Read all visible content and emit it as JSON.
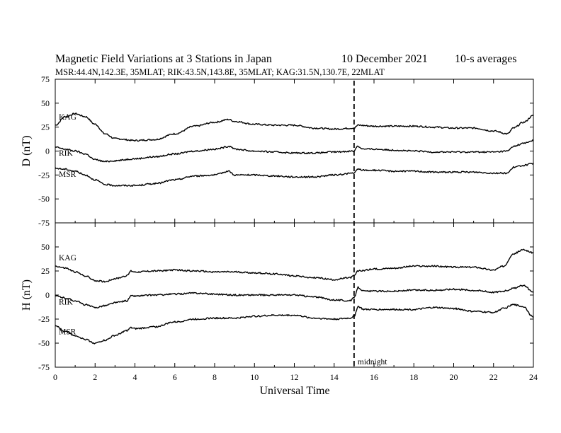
{
  "header": {
    "title": "Magnetic Field Variations at 3 Stations in Japan",
    "date": "10 December 2021",
    "averaging": "10-s averages",
    "stations_line": "MSR:44.4N,142.3E, 35MLAT;  RIK:43.5N,143.8E, 35MLAT;  KAG:31.5N,130.7E, 22MLAT"
  },
  "annotation": {
    "midnight": "midnight",
    "midnight_ut": 15
  },
  "chart_data": [
    {
      "type": "line",
      "panel": "D",
      "ylabel": "D (nT)",
      "xlabel": "",
      "xlim": [
        0,
        24
      ],
      "ylim": [
        -75,
        75
      ],
      "yticks": [
        75,
        50,
        25,
        0,
        -25,
        -50,
        -75
      ],
      "ytick_labels": [
        "75",
        "50",
        "25",
        "0",
        "-25",
        "-50",
        "-75"
      ],
      "grid": false,
      "series": [
        {
          "name": "KAG",
          "x": [
            0,
            0.5,
            1,
            1.5,
            2,
            2.5,
            3,
            4,
            5,
            6,
            7,
            8,
            8.7,
            9,
            10,
            11,
            12,
            13,
            14,
            15,
            15.2,
            16,
            17,
            18,
            19,
            20,
            21,
            22,
            22.7,
            23,
            23.5,
            24
          ],
          "y": [
            27,
            36,
            39,
            36,
            28,
            18,
            13,
            11,
            12,
            18,
            26,
            30,
            33,
            31,
            28,
            27,
            27,
            24,
            23,
            24,
            27,
            26,
            26,
            26,
            25,
            24,
            24,
            21,
            18,
            24,
            30,
            37
          ]
        },
        {
          "name": "RIK",
          "x": [
            0,
            0.5,
            1,
            1.5,
            2,
            2.5,
            3,
            4,
            5,
            6,
            7,
            8,
            8.8,
            9,
            10,
            11,
            12,
            13,
            14,
            15,
            15.15,
            15.5,
            16,
            17,
            18,
            19,
            20,
            21,
            22,
            22.7,
            23,
            23.5,
            24
          ],
          "y": [
            4,
            2,
            0,
            -3,
            -9,
            -11,
            -10,
            -8,
            -6,
            -3,
            0,
            2,
            5,
            2,
            0,
            -1,
            -2,
            -2,
            -1,
            0,
            5,
            2,
            2,
            1,
            0,
            -1,
            -1,
            -1,
            -1,
            0,
            5,
            8,
            11
          ]
        },
        {
          "name": "MSR",
          "x": [
            0,
            0.5,
            1,
            1.5,
            2,
            2.5,
            3,
            4,
            5,
            6,
            7,
            8,
            8.7,
            9,
            10,
            11,
            12,
            13,
            14,
            15,
            15.2,
            15.5,
            16,
            17,
            18,
            19,
            20,
            21,
            22,
            22.7,
            23,
            23.5,
            24
          ],
          "y": [
            -18,
            -19,
            -21,
            -25,
            -30,
            -35,
            -36,
            -36,
            -34,
            -30,
            -26,
            -25,
            -21,
            -25,
            -25,
            -26,
            -27,
            -27,
            -25,
            -23,
            -19,
            -20,
            -20,
            -21,
            -21,
            -22,
            -22,
            -22,
            -23,
            -23,
            -17,
            -15,
            -13
          ]
        }
      ]
    },
    {
      "type": "line",
      "panel": "H",
      "ylabel": "H (nT)",
      "xlabel": "Universal Time",
      "xlim": [
        0,
        24
      ],
      "ylim": [
        -75,
        75
      ],
      "xticks": [
        0,
        2,
        4,
        6,
        8,
        10,
        12,
        14,
        16,
        18,
        20,
        22,
        24
      ],
      "xtick_labels": [
        "0",
        "2",
        "4",
        "6",
        "8",
        "10",
        "12",
        "14",
        "16",
        "18",
        "20",
        "22",
        "24"
      ],
      "yticks": [
        50,
        25,
        0,
        -25,
        -50,
        -75
      ],
      "ytick_labels": [
        "50",
        "25",
        "0",
        "-25",
        "-50",
        "-75"
      ],
      "grid": false,
      "series": [
        {
          "name": "KAG",
          "x": [
            0,
            0.5,
            1,
            1.5,
            2,
            2.5,
            3,
            3.6,
            3.8,
            4,
            5,
            6,
            7,
            8,
            9,
            10,
            11,
            12,
            13,
            14,
            14.8,
            15,
            15.2,
            16,
            17,
            18,
            19,
            20,
            21,
            22,
            22.5,
            23,
            23.5,
            24
          ],
          "y": [
            30,
            28,
            24,
            20,
            15,
            14,
            17,
            20,
            25,
            24,
            25,
            26,
            25,
            24,
            24,
            23,
            22,
            20,
            18,
            16,
            18,
            20,
            25,
            27,
            28,
            30,
            30,
            29,
            29,
            26,
            30,
            43,
            47,
            44
          ]
        },
        {
          "name": "RIK",
          "x": [
            0,
            0.5,
            1,
            1.5,
            2,
            2.5,
            3,
            3.6,
            3.8,
            4,
            5,
            6,
            7,
            8,
            9,
            10,
            11,
            12,
            13,
            14,
            14.8,
            15,
            15.2,
            15.5,
            16,
            17,
            18,
            19,
            20,
            21,
            22,
            22.5,
            23,
            23.5,
            24
          ],
          "y": [
            -1,
            -3,
            -6,
            -10,
            -13,
            -11,
            -8,
            -6,
            -1,
            -1,
            0,
            1,
            2,
            1,
            0,
            0,
            0,
            0,
            -2,
            -5,
            -6,
            -3,
            8,
            4,
            4,
            4,
            5,
            5,
            6,
            5,
            3,
            4,
            7,
            10,
            3
          ]
        },
        {
          "name": "MSR",
          "x": [
            0,
            0.5,
            1,
            1.5,
            2,
            2.5,
            3,
            3.6,
            3.8,
            4,
            5,
            6,
            7,
            8,
            9,
            10,
            11,
            12,
            13,
            14,
            14.8,
            15,
            15.2,
            15.5,
            16,
            17,
            18,
            19,
            20,
            21,
            22,
            22.5,
            23,
            23.5,
            24
          ],
          "y": [
            -32,
            -38,
            -42,
            -46,
            -50,
            -47,
            -42,
            -37,
            -34,
            -35,
            -33,
            -28,
            -25,
            -24,
            -24,
            -22,
            -21,
            -21,
            -24,
            -25,
            -24,
            -22,
            -12,
            -15,
            -15,
            -15,
            -15,
            -13,
            -14,
            -17,
            -18,
            -14,
            -10,
            -12,
            -23
          ]
        }
      ]
    }
  ]
}
